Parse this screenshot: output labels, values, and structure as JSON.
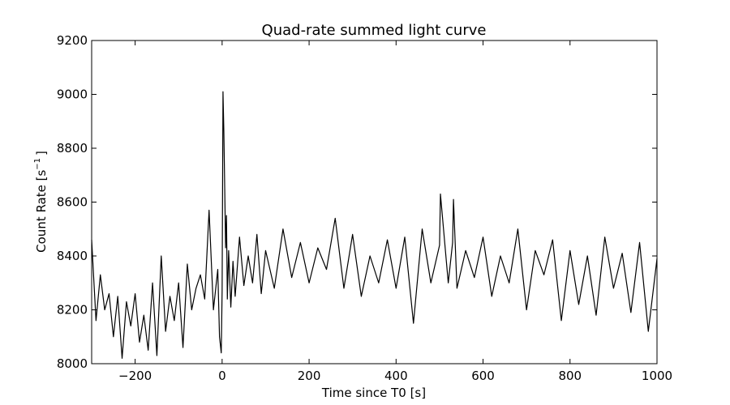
{
  "chart_data": {
    "type": "line",
    "title": "Quad-rate summed light curve",
    "xlabel": "Time since T0 [s]",
    "ylabel_main": "Count Rate [s",
    "ylabel_sup": "−1",
    "ylabel_close": "]",
    "xlim": [
      -300,
      1000
    ],
    "ylim": [
      8000,
      9200
    ],
    "xticks": [
      -200,
      0,
      200,
      400,
      600,
      800,
      1000
    ],
    "xtick_labels": [
      "−200",
      "0",
      "200",
      "400",
      "600",
      "800",
      "1000"
    ],
    "yticks": [
      8000,
      8200,
      8400,
      8600,
      8800,
      9000,
      9200
    ],
    "ytick_labels": [
      "8000",
      "8200",
      "8400",
      "8600",
      "8800",
      "9000",
      "9200"
    ],
    "grid": false,
    "line_color": "#000000",
    "series": [
      {
        "x": [
          -300,
          -290,
          -280,
          -270,
          -260,
          -250,
          -240,
          -230,
          -220,
          -210,
          -200,
          -190,
          -180,
          -170,
          -160,
          -150,
          -140,
          -130,
          -120,
          -110,
          -100,
          -90,
          -80,
          -70,
          -60,
          -50,
          -40,
          -30,
          -20,
          -10,
          -6,
          -2,
          0,
          2,
          4,
          6,
          8,
          10,
          12,
          15,
          20,
          25,
          30,
          40,
          50,
          60,
          70,
          80,
          90,
          100,
          120,
          140,
          160,
          180,
          200,
          220,
          240,
          260,
          280,
          300,
          320,
          340,
          360,
          380,
          400,
          420,
          440,
          460,
          480,
          500,
          502,
          520,
          530,
          532,
          540,
          560,
          580,
          600,
          620,
          640,
          660,
          680,
          700,
          720,
          740,
          760,
          780,
          800,
          820,
          840,
          860,
          880,
          900,
          920,
          940,
          960,
          980,
          1000
        ],
        "y": [
          8460,
          8160,
          8330,
          8200,
          8260,
          8100,
          8250,
          8020,
          8230,
          8140,
          8260,
          8080,
          8180,
          8050,
          8300,
          8030,
          8400,
          8120,
          8250,
          8160,
          8300,
          8060,
          8370,
          8200,
          8280,
          8330,
          8240,
          8570,
          8200,
          8350,
          8100,
          8040,
          8270,
          9010,
          8860,
          8650,
          8430,
          8550,
          8240,
          8420,
          8210,
          8380,
          8250,
          8470,
          8290,
          8400,
          8300,
          8480,
          8260,
          8420,
          8280,
          8500,
          8320,
          8450,
          8300,
          8430,
          8350,
          8540,
          8280,
          8480,
          8250,
          8400,
          8300,
          8460,
          8280,
          8470,
          8150,
          8500,
          8300,
          8440,
          8630,
          8300,
          8450,
          8610,
          8280,
          8420,
          8320,
          8470,
          8250,
          8400,
          8300,
          8500,
          8200,
          8420,
          8330,
          8460,
          8160,
          8420,
          8220,
          8400,
          8180,
          8470,
          8280,
          8410,
          8190,
          8450,
          8120,
          8390
        ]
      }
    ]
  }
}
